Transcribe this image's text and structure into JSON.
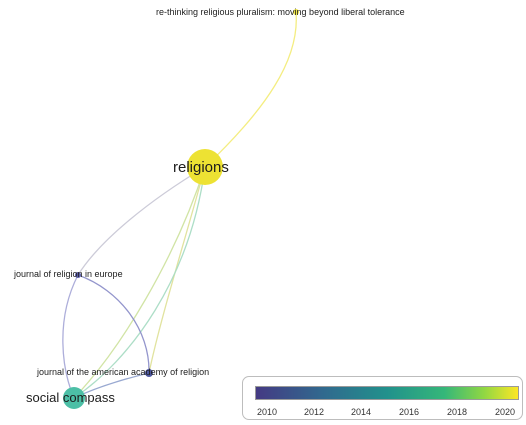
{
  "network": {
    "nodes": [
      {
        "id": "rethinking",
        "label": "re-thinking religious pluralism: moving beyond liberal tolerance",
        "color": "#f2e84a"
      },
      {
        "id": "religions",
        "label": "religions",
        "color": "#ede233"
      },
      {
        "id": "jre",
        "label": "journal of religion in europe",
        "color": "#5b5ea6"
      },
      {
        "id": "jaar",
        "label": "journal of the american academy of religion",
        "color": "#4e58a0"
      },
      {
        "id": "sc",
        "label": "social compass",
        "color": "#4cbfa6"
      }
    ],
    "edges": [
      {
        "from": "religions",
        "to": "rethinking",
        "color": "#f3ec7a"
      },
      {
        "from": "religions",
        "to": "jre",
        "color": "#c9c8d6"
      },
      {
        "from": "religions",
        "to": "jaar",
        "color": "#dfe29a"
      },
      {
        "from": "religions",
        "to": "sc",
        "color": "#cfe3a0"
      },
      {
        "from": "religions",
        "to": "sc",
        "color": "#a9dcc4"
      },
      {
        "from": "jre",
        "to": "jaar",
        "color": "#8d8fc9"
      },
      {
        "from": "jre",
        "to": "sc",
        "color": "#a9aad8"
      },
      {
        "from": "jaar",
        "to": "sc",
        "color": "#93a4cf"
      }
    ]
  },
  "legend": {
    "ticks": [
      "2010",
      "2012",
      "2014",
      "2016",
      "2018",
      "2020"
    ],
    "colors": [
      "#443a83",
      "#31688e",
      "#21918c",
      "#35b779",
      "#90d743",
      "#fde725"
    ]
  }
}
